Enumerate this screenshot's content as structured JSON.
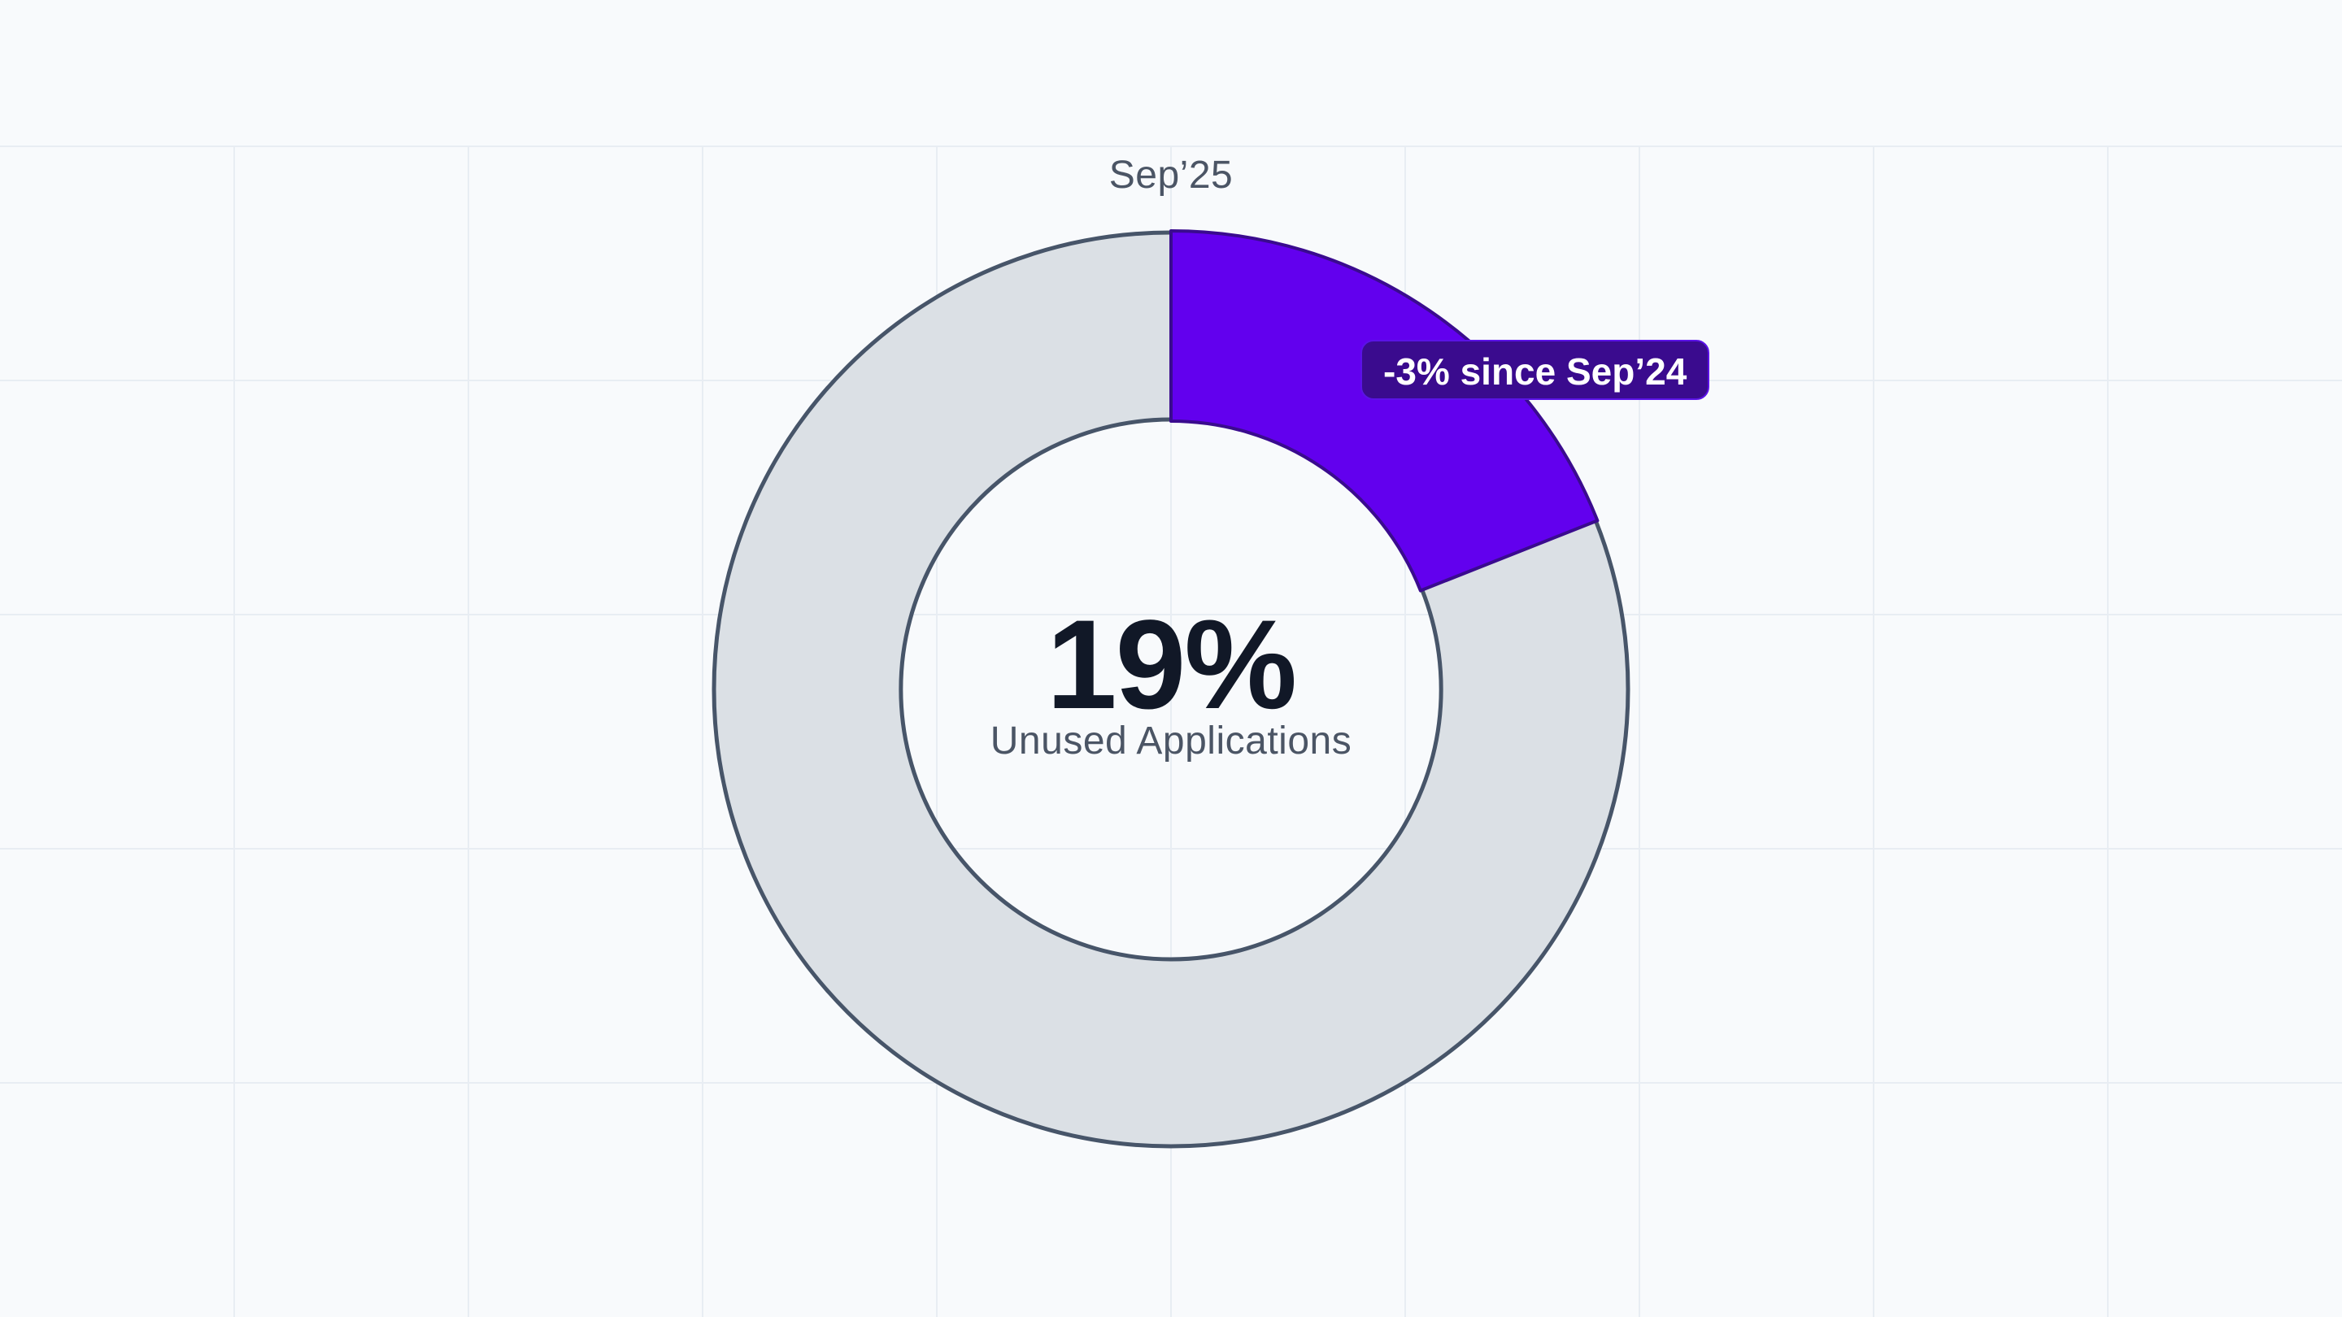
{
  "chart_data": {
    "type": "pie",
    "variant": "donut",
    "period": "Sep’25",
    "center_value": "19%",
    "center_label": "Unused Applications",
    "values": [
      19,
      81
    ],
    "slices": [
      {
        "value": 19,
        "color": "#6200ee",
        "highlighted": true
      },
      {
        "value": 81,
        "color": "#dbe0e5",
        "highlighted": false
      }
    ],
    "annotation": "-3% since Sep’24",
    "grid": true
  },
  "colors": {
    "background": "#f8fafc",
    "gridline": "#e8edf3",
    "highlight": "#6200ee",
    "highlight_stroke": "#3a0b8e",
    "remainder": "#dbe0e5",
    "outline": "#475569",
    "badge": "#3a0b8e"
  }
}
